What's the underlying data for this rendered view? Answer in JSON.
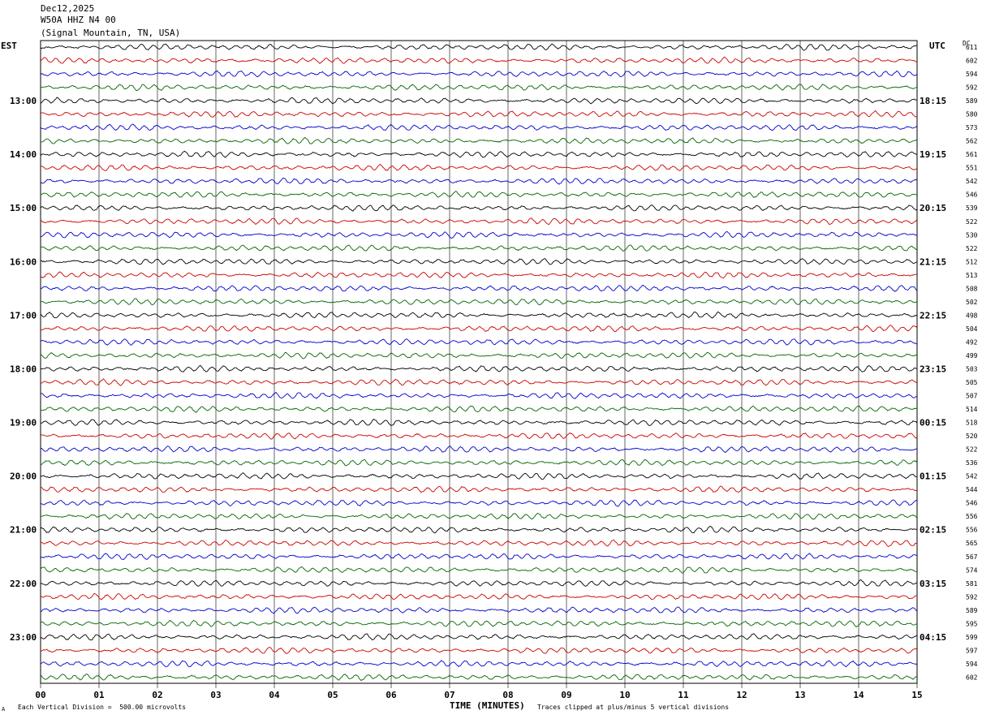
{
  "header": {
    "date": "Dec12,2025",
    "station": "W50A HHZ N4 00",
    "location": "(Signal Mountain, TN, USA)"
  },
  "left_tz": "EST",
  "right_tz": "UTC",
  "dc_label": "DC",
  "footer": {
    "scale_note": "Each Vertical Division =  500.00 microvolts",
    "mark": "A",
    "xlabel": "TIME (MINUTES)",
    "clip_note": "Traces clipped at plus/minus 5 vertical divisions"
  },
  "colors": {
    "trace": [
      "#000000",
      "#cc0000",
      "#0000cc",
      "#006600"
    ],
    "grid": "#000000"
  },
  "chart_data": {
    "type": "line",
    "title": "W50A HHZ N4 00",
    "xlabel": "TIME (MINUTES)",
    "x_ticks": [
      "00",
      "01",
      "02",
      "03",
      "04",
      "05",
      "06",
      "07",
      "08",
      "09",
      "10",
      "11",
      "12",
      "13",
      "14",
      "15"
    ],
    "xlim": [
      0,
      15
    ],
    "trace_minutes": 15,
    "left_hour_labels": [
      "13:00",
      "14:00",
      "15:00",
      "16:00",
      "17:00",
      "18:00",
      "19:00",
      "20:00",
      "21:00",
      "22:00",
      "23:00"
    ],
    "right_hour_labels": [
      "18:15",
      "19:15",
      "20:15",
      "21:15",
      "22:15",
      "23:15",
      "00:15",
      "01:15",
      "02:15",
      "03:15",
      "04:15"
    ],
    "dc_offsets": [
      611,
      602,
      594,
      592,
      589,
      580,
      573,
      562,
      561,
      551,
      542,
      546,
      539,
      522,
      530,
      522,
      512,
      513,
      508,
      502,
      498,
      504,
      492,
      499,
      503,
      505,
      507,
      514,
      518,
      520,
      522,
      536,
      542,
      544,
      546,
      556,
      556,
      565,
      567,
      574,
      581,
      592,
      589,
      595,
      599,
      597,
      594,
      602
    ],
    "series_colors": [
      "black",
      "red",
      "blue",
      "green"
    ]
  }
}
